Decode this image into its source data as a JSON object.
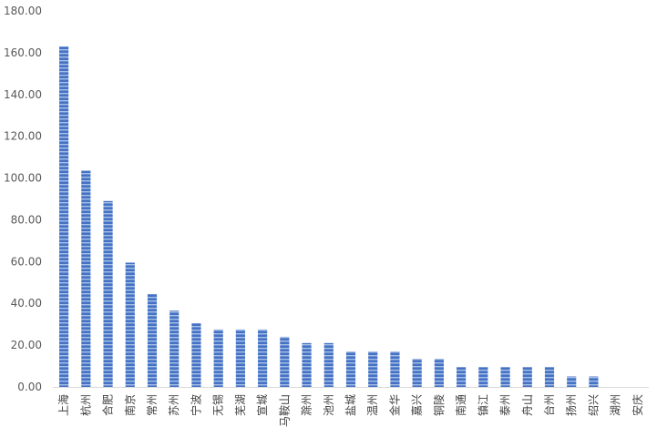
{
  "chart_data": {
    "type": "bar",
    "title": "",
    "xlabel": "",
    "ylabel": "",
    "ylim": [
      0,
      180
    ],
    "yticks": [
      "0.00",
      "20.00",
      "40.00",
      "60.00",
      "80.00",
      "100.00",
      "120.00",
      "140.00",
      "160.00",
      "180.00"
    ],
    "grid": false,
    "legend": "none",
    "bar_color": "#4472c4",
    "categories": [
      "上海",
      "杭州",
      "合肥",
      "南京",
      "常州",
      "苏州",
      "宁波",
      "无锡",
      "芜湖",
      "宣城",
      "马鞍山",
      "滁州",
      "池州",
      "盐城",
      "温州",
      "金华",
      "嘉兴",
      "铜陵",
      "南通",
      "镇江",
      "泰州",
      "舟山",
      "台州",
      "扬州",
      "绍兴",
      "湖州",
      "安庆"
    ],
    "values": [
      163,
      103.5,
      89,
      59.5,
      44.5,
      36.5,
      30.5,
      27.5,
      27.5,
      27.5,
      24,
      21,
      21,
      17,
      17,
      17,
      13.5,
      13.5,
      9.5,
      9.5,
      9.5,
      9.5,
      9.5,
      5,
      5,
      0,
      0
    ]
  }
}
